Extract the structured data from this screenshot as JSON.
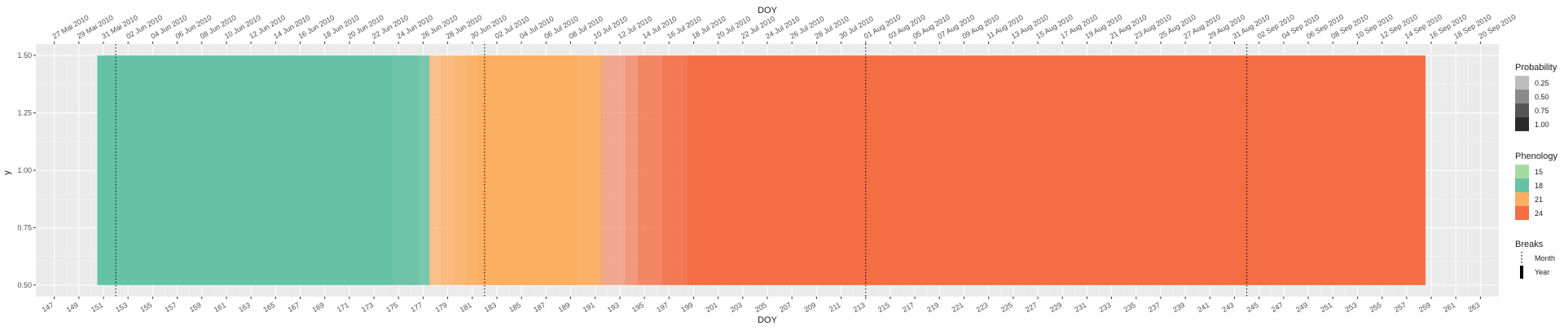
{
  "chart_data": {
    "type": "heatmap",
    "x_title_top": "DOY",
    "x_title_bottom": "DOY",
    "y_title": "y",
    "xlim": [
      145.5,
      264.5
    ],
    "ylim": [
      0.45,
      1.55
    ],
    "y_ticks": [
      0.5,
      0.75,
      1.0,
      1.25,
      1.5
    ],
    "y_tick_labels": [
      "0.50",
      "0.75",
      "1.00",
      "1.25",
      "1.50"
    ],
    "bottom_ticks": [
      147,
      149,
      151,
      153,
      155,
      157,
      159,
      161,
      163,
      165,
      167,
      169,
      171,
      173,
      175,
      177,
      179,
      181,
      183,
      185,
      187,
      189,
      191,
      193,
      195,
      197,
      199,
      201,
      203,
      205,
      207,
      209,
      211,
      213,
      215,
      217,
      219,
      221,
      223,
      225,
      227,
      229,
      231,
      233,
      235,
      237,
      239,
      241,
      243,
      245,
      247,
      249,
      251,
      253,
      255,
      257,
      259,
      261,
      263
    ],
    "top_tick_labels": [
      "27 Mai 2010",
      "29 Mai 2010",
      "31 Mai 2010",
      "02 Jun 2010",
      "04 Jun 2010",
      "06 Jun 2010",
      "08 Jun 2010",
      "10 Jun 2010",
      "12 Jun 2010",
      "14 Jun 2010",
      "16 Jun 2010",
      "18 Jun 2010",
      "20 Jun 2010",
      "22 Jun 2010",
      "24 Jun 2010",
      "26 Jun 2010",
      "28 Jun 2010",
      "30 Jun 2010",
      "02 Jul 2010",
      "04 Jul 2010",
      "06 Jul 2010",
      "08 Jul 2010",
      "10 Jul 2010",
      "12 Jul 2010",
      "14 Jul 2010",
      "16 Jul 2010",
      "18 Jul 2010",
      "20 Jul 2010",
      "22 Jul 2010",
      "24 Jul 2010",
      "26 Jul 2010",
      "28 Jul 2010",
      "30 Jul 2010",
      "01 Aug 2010",
      "03 Aug 2010",
      "05 Aug 2010",
      "07 Aug 2010",
      "09 Aug 2010",
      "11 Aug 2010",
      "13 Aug 2010",
      "15 Aug 2010",
      "17 Aug 2010",
      "19 Aug 2010",
      "21 Aug 2010",
      "23 Aug 2010",
      "25 Aug 2010",
      "27 Aug 2010",
      "29 Aug 2010",
      "31 Aug 2010",
      "02 Sep 2010",
      "04 Sep 2010",
      "06 Sep 2010",
      "08 Sep 2010",
      "10 Sep 2010",
      "12 Sep 2010",
      "14 Sep 2010",
      "16 Sep 2010",
      "18 Sep 2010",
      "20 Sep 2010"
    ],
    "tiles": [
      {
        "x0": 150.5,
        "x1": 174.5,
        "phenology": 18,
        "probability": 1.0
      },
      {
        "x0": 174.5,
        "x1": 176.5,
        "phenology": 18,
        "probability": 0.95
      },
      {
        "x0": 176.5,
        "x1": 177.5,
        "phenology": 18,
        "probability": 0.88
      },
      {
        "x0": 177.5,
        "x1": 178.5,
        "phenology": 21,
        "probability": 0.7
      },
      {
        "x0": 178.5,
        "x1": 179.5,
        "phenology": 21,
        "probability": 0.78
      },
      {
        "x0": 179.5,
        "x1": 180.5,
        "phenology": 21,
        "probability": 0.85
      },
      {
        "x0": 180.5,
        "x1": 181.5,
        "phenology": 21,
        "probability": 0.92
      },
      {
        "x0": 181.5,
        "x1": 189.5,
        "phenology": 21,
        "probability": 1.0
      },
      {
        "x0": 189.5,
        "x1": 191.5,
        "phenology": 21,
        "probability": 0.95
      },
      {
        "x0": 191.5,
        "x1": 193.5,
        "phenology": 24,
        "probability": 0.55
      },
      {
        "x0": 193.5,
        "x1": 194.5,
        "phenology": 24,
        "probability": 0.65
      },
      {
        "x0": 194.5,
        "x1": 196.5,
        "phenology": 24,
        "probability": 0.8
      },
      {
        "x0": 196.5,
        "x1": 198.5,
        "phenology": 24,
        "probability": 0.9
      },
      {
        "x0": 198.5,
        "x1": 258.5,
        "phenology": 24,
        "probability": 1.0
      }
    ],
    "vlines": [
      {
        "x": 152,
        "type": "Month"
      },
      {
        "x": 182,
        "type": "Month"
      },
      {
        "x": 213,
        "type": "Month"
      },
      {
        "x": 244,
        "type": "Month"
      }
    ],
    "legend_probability": {
      "title": "Probability",
      "labels": [
        "0.25",
        "0.50",
        "0.75",
        "1.00"
      ]
    },
    "legend_phenology": {
      "title": "Phenology",
      "labels": [
        "15",
        "18",
        "21",
        "24"
      ],
      "colors": [
        "#A6DBA0",
        "#66C2A5",
        "#FCAE61",
        "#F46D43"
      ]
    },
    "legend_breaks": {
      "title": "Breaks",
      "labels": [
        "Month",
        "Year"
      ]
    },
    "legend_placement": "right",
    "grid": true
  }
}
